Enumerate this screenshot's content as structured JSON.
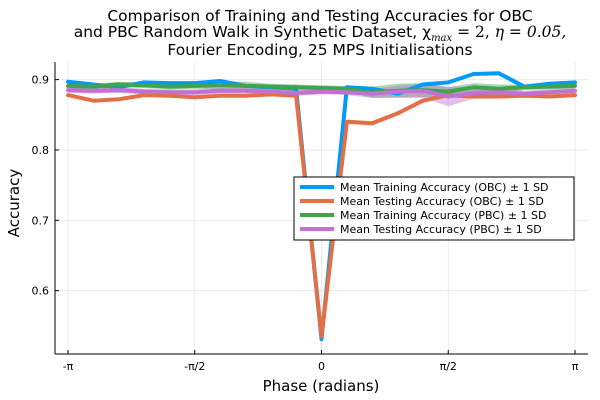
{
  "chart_data": {
    "type": "line",
    "title_lines": [
      "Comparison of Training and Testing Accuracies for OBC",
      "and PBC Random Walk in Synthetic Dataset, χ",
      "Fourier Encoding, 25 MPS Initialisations"
    ],
    "title_math": {
      "chi_sub": "max",
      "chi_eq": " = 2, ",
      "eta": "η = 0.05,"
    },
    "xlabel": "Phase (radians)",
    "ylabel": "Accuracy",
    "xlim": [
      -3.1416,
      3.1416
    ],
    "ylim": [
      0.51,
      0.925
    ],
    "x_ticks": [
      {
        "value": -3.1416,
        "label": "-π"
      },
      {
        "value": -1.5708,
        "label": "-π/2"
      },
      {
        "value": 0,
        "label": "0"
      },
      {
        "value": 1.5708,
        "label": "π/2"
      },
      {
        "value": 3.1416,
        "label": "π"
      }
    ],
    "y_ticks": [
      {
        "value": 0.6,
        "label": "0.6"
      },
      {
        "value": 0.7,
        "label": "0.7"
      },
      {
        "value": 0.8,
        "label": "0.8"
      },
      {
        "value": 0.9,
        "label": "0.9"
      }
    ],
    "grid": true,
    "legend_position": "center-right",
    "x": [
      -3.1416,
      -2.8274,
      -2.5133,
      -2.1991,
      -1.885,
      -1.5708,
      -1.2566,
      -0.9425,
      -0.6283,
      -0.3142,
      0,
      0.3142,
      0.6283,
      0.9425,
      1.2566,
      1.5708,
      1.885,
      2.1991,
      2.5133,
      2.8274,
      3.1416
    ],
    "series": [
      {
        "name": "Mean Training Accuracy (OBC) ± 1 SD",
        "color": "#009AFA",
        "values": [
          0.897,
          0.893,
          0.889,
          0.896,
          0.895,
          0.895,
          0.898,
          0.891,
          0.889,
          0.887,
          0.531,
          0.889,
          0.887,
          0.88,
          0.893,
          0.896,
          0.908,
          0.909,
          0.89,
          0.894,
          0.896
        ],
        "sd": [
          0.002,
          0.002,
          0.002,
          0.002,
          0.002,
          0.002,
          0.002,
          0.002,
          0.002,
          0.002,
          0.004,
          0.002,
          0.002,
          0.002,
          0.002,
          0.002,
          0.002,
          0.002,
          0.002,
          0.002,
          0.002
        ]
      },
      {
        "name": "Mean Testing Accuracy (OBC) ± 1 SD",
        "color": "#E36F47",
        "values": [
          0.878,
          0.87,
          0.872,
          0.878,
          0.877,
          0.875,
          0.877,
          0.877,
          0.879,
          0.877,
          0.535,
          0.84,
          0.838,
          0.852,
          0.87,
          0.878,
          0.876,
          0.876,
          0.877,
          0.876,
          0.878
        ],
        "sd": [
          0.002,
          0.002,
          0.002,
          0.002,
          0.002,
          0.002,
          0.002,
          0.002,
          0.002,
          0.002,
          0.006,
          0.003,
          0.003,
          0.003,
          0.003,
          0.003,
          0.003,
          0.003,
          0.002,
          0.002,
          0.002
        ]
      },
      {
        "name": "Mean Training Accuracy (PBC) ± 1 SD",
        "color": "#3EA44E",
        "values": [
          0.891,
          0.89,
          0.893,
          0.892,
          0.89,
          0.891,
          0.892,
          0.891,
          0.89,
          0.889,
          0.888,
          0.887,
          0.882,
          0.884,
          0.885,
          0.883,
          0.889,
          0.887,
          0.889,
          0.89,
          0.891
        ],
        "sd": [
          0.004,
          0.004,
          0.004,
          0.004,
          0.004,
          0.004,
          0.006,
          0.006,
          0.004,
          0.004,
          0.004,
          0.004,
          0.008,
          0.01,
          0.01,
          0.006,
          0.006,
          0.006,
          0.004,
          0.004,
          0.004
        ]
      },
      {
        "name": "Mean Testing Accuracy (PBC) ± 1 SD",
        "color": "#C271D2",
        "values": [
          0.885,
          0.884,
          0.885,
          0.883,
          0.882,
          0.882,
          0.884,
          0.884,
          0.883,
          0.881,
          0.883,
          0.882,
          0.88,
          0.883,
          0.884,
          0.876,
          0.881,
          0.882,
          0.88,
          0.882,
          0.884
        ],
        "sd": [
          0.004,
          0.004,
          0.004,
          0.004,
          0.004,
          0.004,
          0.004,
          0.004,
          0.004,
          0.004,
          0.004,
          0.004,
          0.006,
          0.008,
          0.01,
          0.014,
          0.008,
          0.006,
          0.004,
          0.004,
          0.004
        ]
      }
    ]
  }
}
